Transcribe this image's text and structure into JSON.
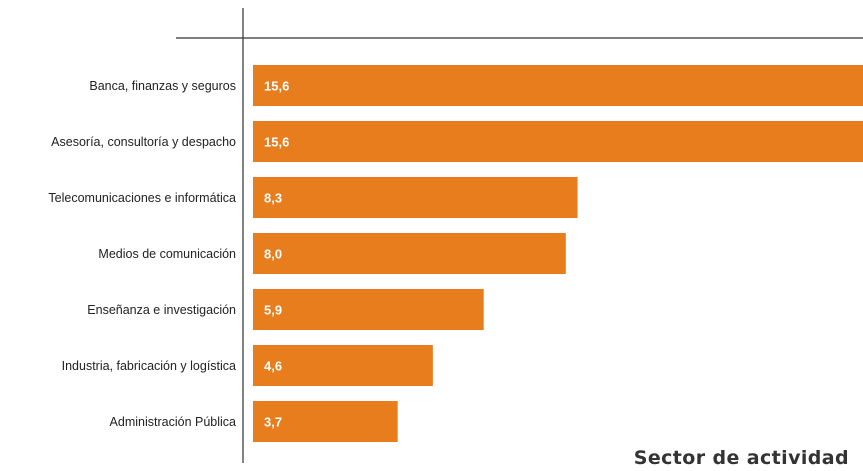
{
  "chart_data": {
    "type": "bar",
    "orientation": "horizontal",
    "title": "Sector de actividad",
    "categories": [
      "Banca, finanzas y seguros",
      "Asesoría, consultoría y despacho",
      "Telecomunicaciones e informática",
      "Medios de comunicación",
      "Enseñanza e investigación",
      "Industria, fabricación y logística",
      "Administración Pública"
    ],
    "values": [
      15.6,
      15.6,
      8.3,
      8.0,
      5.9,
      4.6,
      3.7
    ],
    "value_labels": [
      "15,6",
      "15,6",
      "8,3",
      "8,0",
      "5,9",
      "4,6",
      "3,7"
    ],
    "xlim": [
      0,
      15.6
    ],
    "grid": false,
    "legend": "none",
    "colors": {
      "bar": "#e87d1e",
      "axis": "#333333",
      "value_text": "#ffffff"
    }
  }
}
